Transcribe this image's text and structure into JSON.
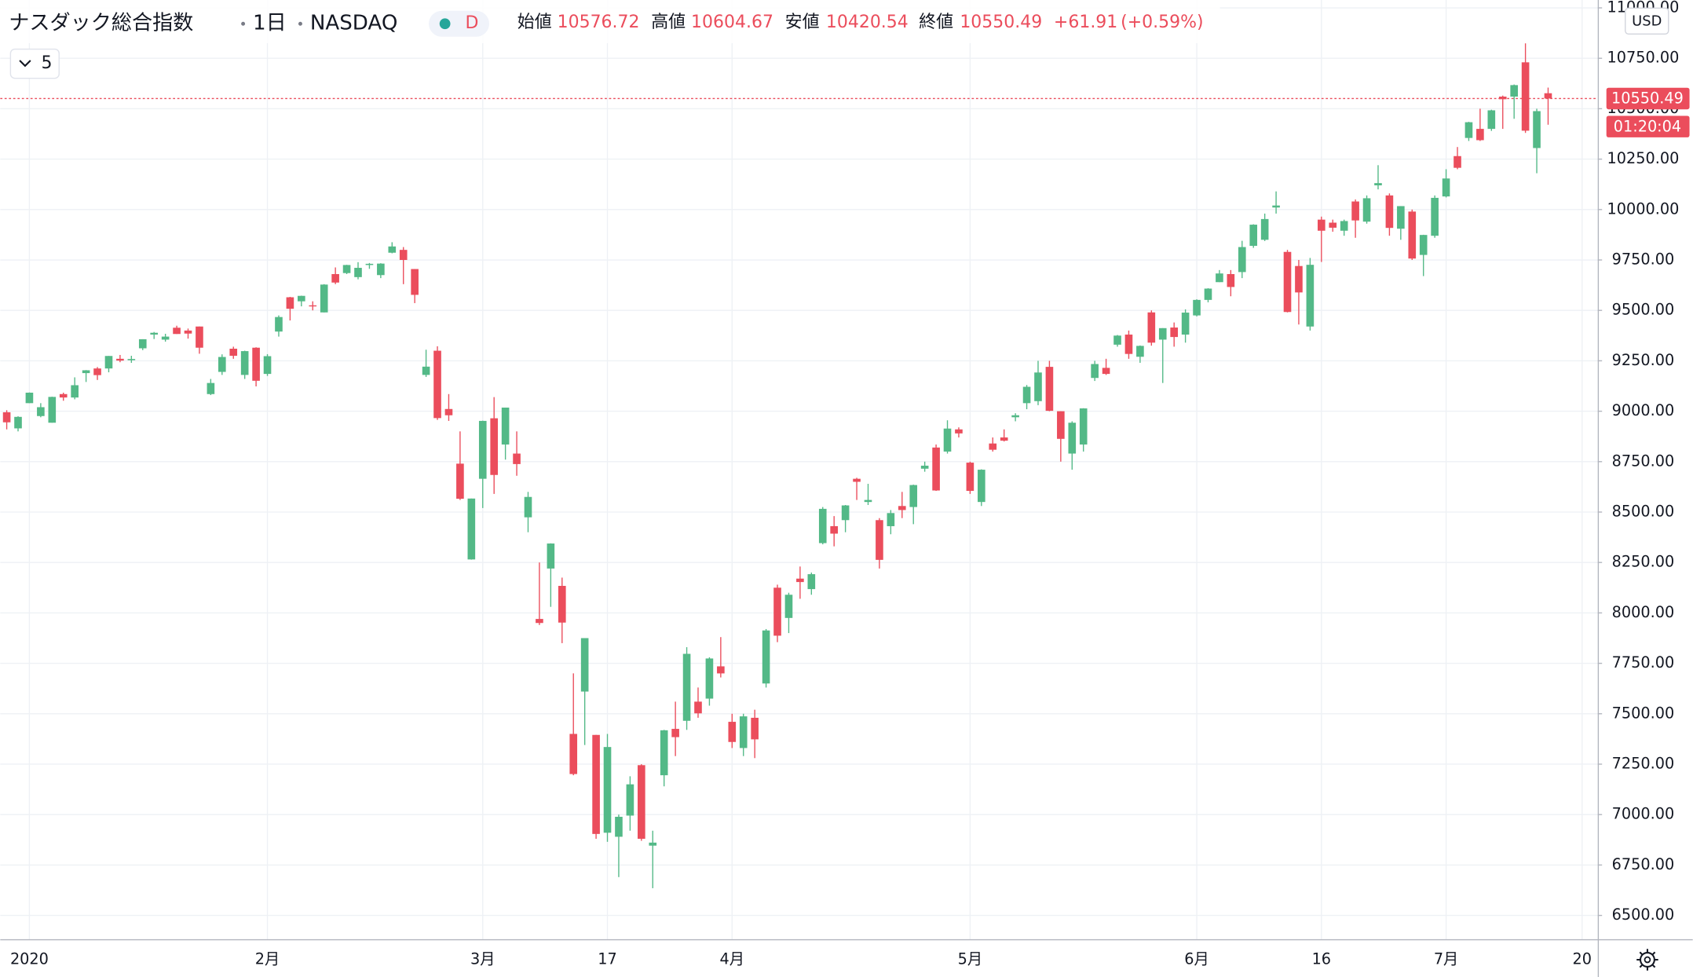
{
  "chart_data": {
    "type": "candlestick",
    "title": "ナスダック総合指数",
    "interval": "1日",
    "exchange": "NASDAQ",
    "badge": "D",
    "toolbar_value": 5,
    "ohlc_labels": [
      "始値",
      "高値",
      "安値",
      "終値"
    ],
    "change": "+61.91",
    "change_pct": "(+0.59%)",
    "currency": "USD",
    "countdown": "01:20:04",
    "up_color": "#53b987",
    "down_color": "#eb4d5c",
    "grid": true,
    "ylim": [
      6382,
      11039
    ],
    "yticks": [
      {
        "value": 6500,
        "label": "6500.00"
      },
      {
        "value": 6750,
        "label": "6750.00"
      },
      {
        "value": 7000,
        "label": "7000.00"
      },
      {
        "value": 7250,
        "label": "7250.00"
      },
      {
        "value": 7500,
        "label": "7500.00"
      },
      {
        "value": 7750,
        "label": "7750.00"
      },
      {
        "value": 8000,
        "label": "8000.00"
      },
      {
        "value": 8250,
        "label": "8250.00"
      },
      {
        "value": 8500,
        "label": "8500.00"
      },
      {
        "value": 8750,
        "label": "8750.00"
      },
      {
        "value": 9000,
        "label": "9000.00"
      },
      {
        "value": 9250,
        "label": "9250.00"
      },
      {
        "value": 9500,
        "label": "9500.00"
      },
      {
        "value": 9750,
        "label": "9750.00"
      },
      {
        "value": 10000,
        "label": "10000.00"
      },
      {
        "value": 10250,
        "label": "10250.00"
      },
      {
        "value": 10500,
        "label": "10500.00"
      },
      {
        "value": 10750,
        "label": "10750.00"
      },
      {
        "value": 11000,
        "label": "11000.00"
      }
    ],
    "categories": [
      null,
      null,
      "2020",
      null,
      null,
      null,
      null,
      null,
      null,
      null,
      null,
      null,
      null,
      null,
      null,
      null,
      null,
      null,
      null,
      null,
      null,
      null,
      null,
      "2月",
      null,
      null,
      null,
      null,
      null,
      null,
      null,
      null,
      null,
      null,
      null,
      null,
      null,
      null,
      null,
      null,
      null,
      null,
      "3月",
      null,
      null,
      null,
      null,
      null,
      null,
      null,
      null,
      null,
      null,
      "17",
      null,
      null,
      null,
      null,
      null,
      null,
      null,
      null,
      null,
      null,
      "4月",
      null,
      null,
      null,
      null,
      null,
      null,
      null,
      null,
      null,
      null,
      null,
      null,
      null,
      null,
      null,
      null,
      null,
      null,
      null,
      null,
      "5月",
      null,
      null,
      null,
      null,
      null,
      null,
      null,
      null,
      null,
      null,
      null,
      null,
      null,
      null,
      null,
      null,
      null,
      null,
      null,
      "6月",
      null,
      null,
      null,
      null,
      null,
      null,
      null,
      null,
      null,
      null,
      "16",
      null,
      null,
      null,
      null,
      null,
      null,
      null,
      null,
      null,
      null,
      "7月",
      null,
      null,
      null,
      null,
      null,
      null,
      null,
      null,
      null,
      null,
      null,
      "20"
    ],
    "open": [
      8995,
      8915,
      9040,
      8976,
      8943,
      9085,
      9068,
      9189,
      9212,
      9212,
      9260,
      9253,
      9312,
      9380,
      9355,
      9414,
      9400,
      9420,
      9085,
      9195,
      9310,
      9180,
      9315,
      9185,
      9395,
      9565,
      9545,
      9525,
      9490,
      9680,
      9685,
      9665,
      9725,
      9675,
      9786,
      9800,
      9705,
      9180,
      9300,
      9011,
      8740,
      8265,
      8665,
      8965,
      8835,
      8790,
      8474,
      7970,
      8220,
      8134,
      7400,
      7610,
      7395,
      6910,
      6890,
      6995,
      7245,
      6846,
      7195,
      7425,
      7465,
      7560,
      7575,
      7735,
      7460,
      7330,
      7480,
      7650,
      8125,
      7975,
      8170,
      8118,
      8346,
      8430,
      8460,
      8665,
      8550,
      8460,
      8430,
      8530,
      8525,
      8715,
      8820,
      8800,
      8910,
      8745,
      8550,
      8840,
      8870,
      8970,
      9040,
      9050,
      9220,
      9000,
      8790,
      8835,
      9165,
      9215,
      9330,
      9380,
      9270,
      9490,
      9355,
      9415,
      9380,
      9475,
      9552,
      9640,
      9680,
      9690,
      9820,
      9850,
      10010,
      9790,
      9720,
      9420,
      9950,
      9935,
      9895,
      10040,
      9940,
      10120,
      10070,
      9905,
      9990,
      9775,
      9870,
      10065,
      10265,
      10355,
      10400,
      10400,
      10560,
      10560,
      10730,
      10305,
      10576.72,
      null,
      null,
      null
    ],
    "high": [
      9005,
      8975,
      9093,
      9040,
      9072,
      9092,
      9168,
      9204,
      9219,
      9274,
      9279,
      9275,
      9357,
      9393,
      9384,
      9424,
      9410,
      9420,
      9160,
      9282,
      9320,
      9300,
      9317,
      9283,
      9475,
      9567,
      9573,
      9545,
      9630,
      9713,
      9726,
      9739,
      9735,
      9734,
      9838,
      9814,
      9705,
      9305,
      9322,
      9085,
      8900,
      8567,
      8953,
      9070,
      9018,
      8900,
      8600,
      8250,
      8345,
      8175,
      7700,
      7875,
      7395,
      7400,
      7000,
      7190,
      7250,
      6920,
      7420,
      7560,
      7830,
      7630,
      7780,
      7880,
      7500,
      7500,
      7520,
      7920,
      8140,
      8100,
      8230,
      8200,
      8525,
      8480,
      8535,
      8670,
      8640,
      8470,
      8510,
      8600,
      8636,
      8750,
      8835,
      8955,
      8920,
      8750,
      8712,
      8870,
      8910,
      8990,
      9130,
      9250,
      9250,
      9000,
      8950,
      9015,
      9250,
      9260,
      9378,
      9400,
      9326,
      9500,
      9412,
      9440,
      9505,
      9555,
      9610,
      9700,
      9700,
      9845,
      9927,
      9980,
      10090,
      9800,
      9750,
      9760,
      9965,
      9950,
      9950,
      10050,
      10070,
      10220,
      10080,
      10017,
      10000,
      9875,
      10070,
      10200,
      10310,
      10435,
      10500,
      10495,
      10565,
      10620,
      10824,
      10500,
      10604.67,
      null,
      null,
      null
    ],
    "low": [
      8910,
      8900,
      9040,
      8970,
      8943,
      9052,
      9059,
      9145,
      9155,
      9193,
      9243,
      9240,
      9303,
      9358,
      9345,
      9383,
      9360,
      9285,
      9080,
      9180,
      9260,
      9160,
      9123,
      9175,
      9370,
      9450,
      9520,
      9500,
      9490,
      9630,
      9680,
      9654,
      9706,
      9660,
      9783,
      9630,
      9536,
      9170,
      8957,
      8952,
      8560,
      8264,
      8520,
      8590,
      8760,
      8680,
      8400,
      7940,
      8030,
      7850,
      7195,
      7345,
      6880,
      6865,
      6690,
      6920,
      6870,
      6635,
      7140,
      7290,
      7420,
      7480,
      7540,
      7680,
      7330,
      7290,
      7280,
      7630,
      7855,
      7900,
      8070,
      8090,
      8340,
      8330,
      8400,
      8560,
      8535,
      8220,
      8390,
      8470,
      8440,
      8700,
      8605,
      8790,
      8870,
      8590,
      8530,
      8800,
      8850,
      8950,
      9010,
      9030,
      9000,
      8750,
      8710,
      8800,
      9150,
      9180,
      9320,
      9260,
      9240,
      9325,
      9140,
      9320,
      9340,
      9470,
      9540,
      9640,
      9570,
      9660,
      9810,
      9844,
      9980,
      9490,
      9430,
      9400,
      9740,
      9890,
      9870,
      9860,
      9930,
      10100,
      9870,
      9850,
      9750,
      9670,
      9860,
      10060,
      10200,
      10340,
      10340,
      10390,
      10400,
      10450,
      10380,
      10180,
      10420.54,
      null,
      null,
      null
    ],
    "close": [
      8945,
      8972,
      9092,
      9020,
      9071,
      9068,
      9129,
      9203,
      9179,
      9274,
      9251,
      9259,
      9357,
      9389,
      9370,
      9383,
      9385,
      9315,
      9140,
      9269,
      9275,
      9298,
      9151,
      9273,
      9467,
      9508,
      9572,
      9520,
      9628,
      9638,
      9725,
      9711,
      9731,
      9732,
      9817,
      9750,
      9577,
      9221,
      8966,
      8980,
      8566,
      8567,
      8952,
      8684,
      9018,
      8738,
      8575,
      7950,
      8344,
      7952,
      7201,
      7875,
      6904,
      7335,
      6989,
      7150,
      6880,
      6861,
      7418,
      7384,
      7797,
      7502,
      7774,
      7700,
      7360,
      7487,
      7373,
      7913,
      7887,
      8090,
      8153,
      8192,
      8516,
      8393,
      8533,
      8650,
      8560,
      8263,
      8495,
      8510,
      8634,
      8730,
      8607,
      8914,
      8890,
      8605,
      8710,
      8809,
      8854,
      8980,
      9121,
      9192,
      9002,
      8863,
      8943,
      9014,
      9234,
      9185,
      9375,
      9284,
      9324,
      9340,
      9412,
      9368,
      9489,
      9552,
      9608,
      9683,
      9616,
      9814,
      9925,
      9953,
      10020,
      9492,
      9589,
      9726,
      9895,
      9910,
      9943,
      9946,
      10056,
      10131,
      9909,
      10017,
      9757,
      9874,
      10058,
      10154,
      10207,
      10433,
      10344,
      10492,
      10547,
      10617,
      10391,
      10488,
      10550.49,
      null,
      null,
      null
    ]
  }
}
